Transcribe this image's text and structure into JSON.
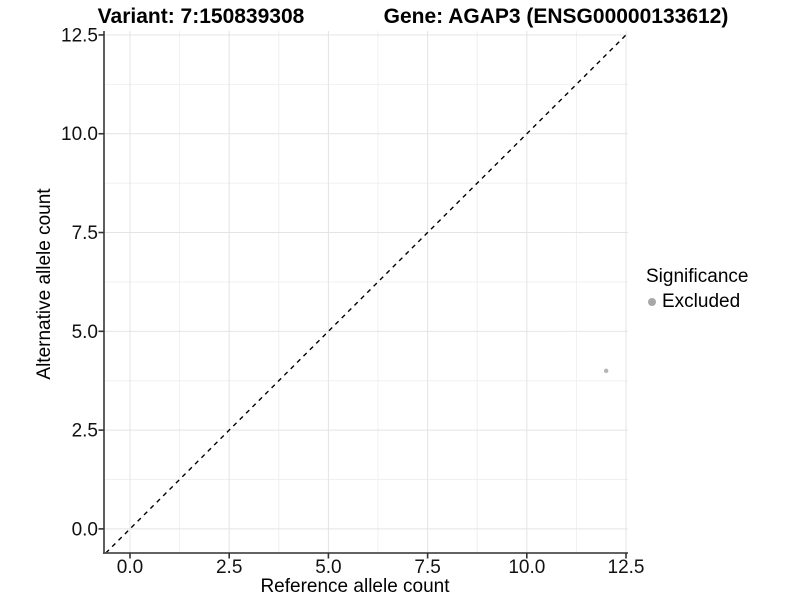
{
  "titles": {
    "variant": "Variant: 7:150839308",
    "gene": "Gene: AGAP3 (ENSG00000133612)"
  },
  "chart_data": {
    "type": "scatter",
    "title_left": "Variant: 7:150839308",
    "title_right": "Gene: AGAP3 (ENSG00000133612)",
    "xlabel": "Reference allele count",
    "ylabel": "Alternative allele count",
    "xlim": [
      -0.655,
      12.55
    ],
    "ylim": [
      -0.61,
      12.6
    ],
    "xticks": [
      0.0,
      2.5,
      5.0,
      7.5,
      10.0,
      12.5
    ],
    "yticks": [
      0.0,
      2.5,
      5.0,
      7.5,
      10.0,
      12.5
    ],
    "xtick_labels": [
      "0.0",
      "2.5",
      "5.0",
      "7.5",
      "10.0",
      "12.5"
    ],
    "ytick_labels": [
      "0.0",
      "2.5",
      "5.0",
      "7.5",
      "10.0",
      "12.5"
    ],
    "xticks_minor": [
      1.25,
      3.75,
      6.25,
      8.75,
      11.25
    ],
    "yticks_minor": [
      1.25,
      3.75,
      6.25,
      8.75,
      11.25
    ],
    "grid": "major+minor",
    "reference_line": {
      "type": "abline",
      "slope": 1,
      "intercept": 0,
      "style": "dashed",
      "color": "#000000"
    },
    "series": [
      {
        "name": "Excluded",
        "color": "#b5b5b5",
        "point_radius": 2.2,
        "points": [
          {
            "x": 12,
            "y": 4
          }
        ]
      }
    ],
    "legend": {
      "title": "Significance",
      "position": "right",
      "entries": [
        {
          "label": "Excluded",
          "color": "#a8a8a8"
        }
      ]
    },
    "colors": {
      "axis_line": "#4d4d4d",
      "tick_mark": "#333333",
      "grid_major": "#e4e4e4",
      "grid_minor": "#f0f0f0",
      "tick_label": "#111111"
    }
  }
}
